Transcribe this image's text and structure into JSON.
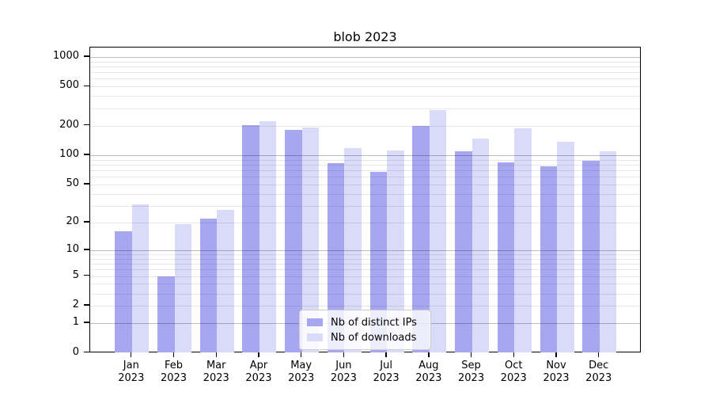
{
  "title": "blob 2023",
  "chart_data": {
    "type": "bar",
    "categories": [
      "Jan",
      "Feb",
      "Mar",
      "Apr",
      "May",
      "Jun",
      "Jul",
      "Aug",
      "Sep",
      "Oct",
      "Nov",
      "Dec"
    ],
    "category_year_suffix": "2023",
    "series": [
      {
        "name": "Nb of distinct IPs",
        "color": "#a6a6f1",
        "values": [
          16,
          5,
          22,
          202,
          182,
          83,
          67,
          200,
          109,
          84,
          77,
          88
        ]
      },
      {
        "name": "Nb of downloads",
        "color": "#dadaf9",
        "values": [
          31,
          19,
          27,
          222,
          191,
          118,
          111,
          290,
          148,
          189,
          137,
          110
        ]
      }
    ],
    "yscale": "log1p",
    "yticks": [
      0,
      1,
      2,
      5,
      10,
      20,
      50,
      100,
      200,
      500,
      1000
    ],
    "ylim": [
      0,
      1245
    ],
    "grid": true,
    "legend_position": "lower center",
    "colors": {
      "axis": "#000000",
      "major_grid": "#bdbdbd",
      "minor_grid": "#e8e8e8"
    }
  }
}
